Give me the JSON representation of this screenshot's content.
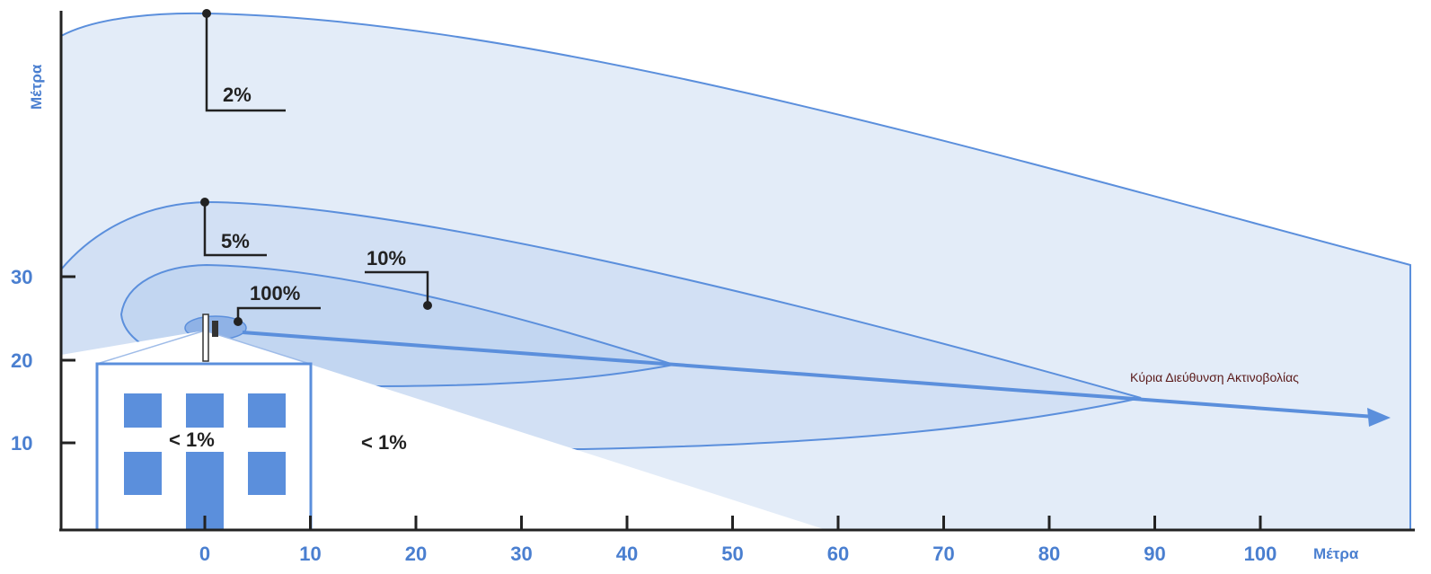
{
  "axes": {
    "y_unit": "Μέτρα",
    "x_unit": "Μέτρα",
    "y_ticks": [
      "30",
      "20",
      "10"
    ],
    "x_ticks": [
      "0",
      "10",
      "20",
      "30",
      "40",
      "50",
      "60",
      "70",
      "80",
      "90",
      "100"
    ]
  },
  "zones": {
    "two_percent": "2%",
    "five_percent": "5%",
    "ten_percent": "10%",
    "hundred_percent": "100%",
    "inside_building": "< 1%",
    "below_beam": "< 1%"
  },
  "beam": {
    "label": "Κύρια Διεύθυνση Ακτινοβολίας"
  },
  "colors": {
    "zone_light": "#dfe9f7",
    "zone_mid": "#c4d7f1",
    "zone_dark": "#a9c5ec",
    "outline": "#5b8fdc",
    "axis_text": "#4a7fd0",
    "window": "#5b8fdc"
  }
}
